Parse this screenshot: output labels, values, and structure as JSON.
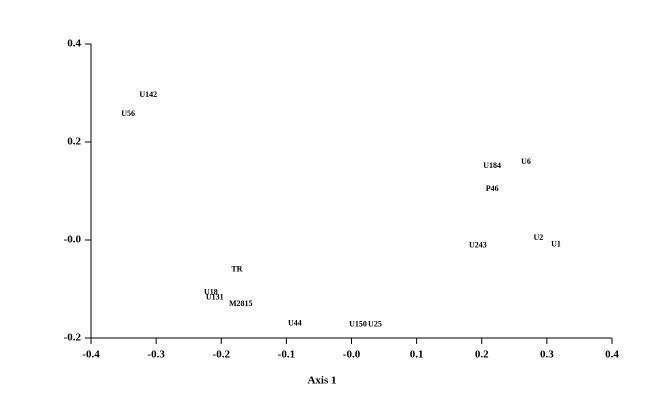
{
  "chart_data": {
    "type": "scatter",
    "x_label": "Axis 1",
    "labels": [
      "U142",
      "U56",
      "U184",
      "U6",
      "P46",
      "U2",
      "U1",
      "U243",
      "TR",
      "U18",
      "U131",
      "M2815",
      "U44",
      "U150",
      "U25"
    ],
    "x": [
      -0.312,
      -0.343,
      0.216,
      0.268,
      0.216,
      0.287,
      0.314,
      0.194,
      -0.176,
      -0.216,
      -0.21,
      -0.17,
      -0.087,
      0.01,
      0.036
    ],
    "values": [
      0.296,
      0.257,
      0.151,
      0.159,
      0.104,
      0.004,
      -0.01,
      -0.012,
      -0.061,
      -0.108,
      -0.118,
      -0.131,
      -0.171,
      -0.173,
      -0.173
    ],
    "xlim": [
      -0.4,
      0.4
    ],
    "ylim": [
      -0.2,
      0.4
    ],
    "xticks": [
      -0.4,
      -0.3,
      -0.2,
      -0.1,
      {
        "value": 0,
        "label": "-0.0"
      },
      0.1,
      0.2,
      0.3,
      0.4
    ],
    "yticks": [
      -0.2,
      {
        "value": 0,
        "label": "-0.0"
      },
      0.2,
      0.4
    ]
  }
}
